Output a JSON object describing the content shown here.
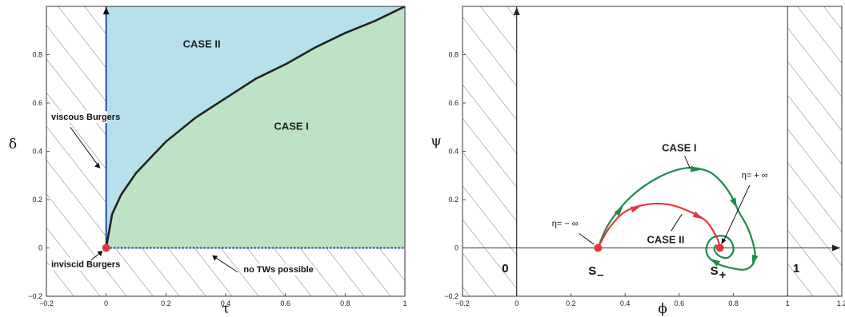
{
  "chart_data": [
    {
      "type": "area",
      "xlabel": "τ",
      "ylabel": "δ",
      "xlim": [
        -0.2,
        1
      ],
      "ylim": [
        -0.2,
        1
      ],
      "xticks": [
        "−0.2",
        "0",
        "0.2",
        "0.4",
        "0.6",
        "0.8",
        "1"
      ],
      "yticks": [
        "−0.2",
        "0",
        "0.2",
        "0.4",
        "0.6",
        "0.8"
      ],
      "boundary_curve": {
        "x": [
          0,
          0.02,
          0.05,
          0.1,
          0.2,
          0.3,
          0.4,
          0.5,
          0.6,
          0.7,
          0.8,
          0.9,
          1.0
        ],
        "y": [
          0,
          0.14,
          0.22,
          0.31,
          0.44,
          0.54,
          0.62,
          0.7,
          0.76,
          0.83,
          0.89,
          0.94,
          1.0
        ]
      },
      "regions": [
        {
          "label": "CASE II",
          "color": "#b7e0ea"
        },
        {
          "label": "CASE I",
          "color": "#bfe1c4"
        }
      ],
      "annotations": [
        {
          "text": "viscous Burgers",
          "x": -0.17,
          "y": 0.53
        },
        {
          "text": "inviscid Burgers",
          "x": -0.17,
          "y": -0.08
        },
        {
          "text": "no TWs possible",
          "x": 0.46,
          "y": -0.1
        }
      ],
      "point": {
        "x": 0,
        "y": 0,
        "color": "#e8343f"
      },
      "line_color": "#1f4fa8",
      "curve_color": "#222222"
    },
    {
      "type": "line",
      "xlabel": "ϕ",
      "ylabel": "ψ",
      "xlim": [
        -0.2,
        1.2
      ],
      "ylim": [
        -0.2,
        1
      ],
      "xticks": [
        "−0.2",
        "0",
        "0.2",
        "0.4",
        "0.6",
        "0.8",
        "1",
        "1.2"
      ],
      "yticks": [
        "−0.2",
        "0",
        "0.2",
        "0.4",
        "0.6",
        "0.8"
      ],
      "series": [
        {
          "name": "CASE I",
          "color": "#1d8a4e",
          "x": [
            0.3,
            0.34,
            0.42,
            0.52,
            0.62,
            0.7,
            0.75,
            0.79,
            0.82,
            0.85,
            0.87,
            0.88,
            0.87,
            0.84,
            0.8,
            0.75,
            0.71,
            0.7,
            0.72,
            0.76,
            0.79,
            0.8,
            0.78,
            0.75,
            0.73,
            0.735,
            0.75
          ],
          "y": [
            0,
            0.1,
            0.21,
            0.29,
            0.33,
            0.32,
            0.28,
            0.22,
            0.15,
            0.09,
            0.03,
            -0.03,
            -0.07,
            -0.09,
            -0.085,
            -0.07,
            -0.04,
            0,
            0.04,
            0.05,
            0.03,
            -0.01,
            -0.04,
            -0.035,
            -0.01,
            0.01,
            0
          ]
        },
        {
          "name": "CASE II",
          "color": "#e8343f",
          "x": [
            0.3,
            0.34,
            0.4,
            0.48,
            0.56,
            0.64,
            0.7,
            0.74,
            0.75
          ],
          "y": [
            0,
            0.08,
            0.15,
            0.18,
            0.18,
            0.15,
            0.11,
            0.04,
            0
          ]
        }
      ],
      "points": [
        {
          "x": 0.3,
          "y": 0,
          "color": "#e8343f"
        },
        {
          "x": 0.75,
          "y": 0,
          "color": "#e8343f"
        }
      ],
      "annotations": [
        {
          "text": "η= − ∞",
          "x": 0.22,
          "y": 0.09
        },
        {
          "text": "η= + ∞",
          "x": 0.87,
          "y": 0.29
        },
        {
          "text": "0",
          "x": -0.03,
          "y": -0.1
        },
        {
          "text": "1",
          "x": 1.02,
          "y": -0.1
        }
      ],
      "point_labels": [
        {
          "text": "S",
          "sub": "–",
          "x": 0.3,
          "y": -0.11
        },
        {
          "text": "S",
          "sub": "+",
          "x": 0.75,
          "y": -0.11
        }
      ]
    }
  ]
}
